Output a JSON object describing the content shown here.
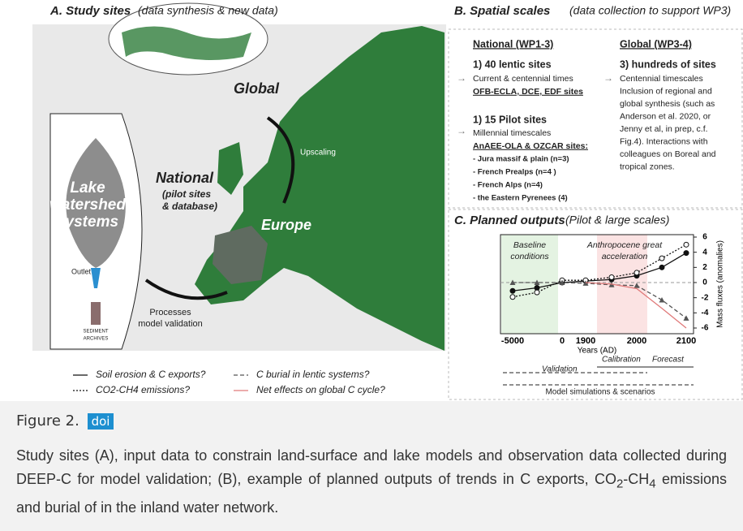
{
  "panel_a": {
    "heading": "A. Study sites",
    "subheading": "(data synthesis & new data)",
    "labels": {
      "global": "Global",
      "national": "National",
      "national_note": [
        "(pilot sites",
        "& database)"
      ],
      "europe": "Europe",
      "upscaling": "Upscaling",
      "lake": [
        "Lake",
        "watershed",
        "systems"
      ],
      "outlet": "Outlet",
      "archives": [
        "SEDIMENT",
        "ARCHIVES"
      ],
      "processes": [
        "Processes",
        "model validation"
      ]
    }
  },
  "panel_b": {
    "heading": "B. Spatial scales",
    "subheading": "(data collection to support WP3)",
    "national": {
      "title": "National (WP1-3)",
      "group_1_title": "1) 40 lentic sites",
      "group_1_lines": [
        "Current & centennial times",
        "OFB-ECLA, DCE, EDF sites"
      ],
      "group_2_title": "1) 15 Pilot sites",
      "group_2_lines": [
        "Millennial timescales",
        "AnAEE-OLA & OZCAR sites:"
      ],
      "bullets": [
        "- Jura massif & plain (n=3)",
        "- French Prealps (n=4 )",
        "- French Alps (n=4)",
        "- the Eastern Pyrenees (4)"
      ]
    },
    "global": {
      "title": "Global (WP3-4)",
      "group_title": "3) hundreds of sites",
      "lines": [
        "Centennial timescales",
        "Inclusion of regional and",
        "global synthesis (such as",
        "Anderson et al. 2020, or",
        "Jenny et al, in prep, c.f.",
        "Fig.4). Interactions with",
        "colleagues on Boreal and",
        "tropical zones."
      ]
    }
  },
  "panel_c": {
    "heading": "C. Planned outputs",
    "subheading": "(Pilot & large scales)",
    "annotations": {
      "baseline": [
        "Baseline",
        "conditions"
      ],
      "anthropocene": [
        "Anthropocene great",
        "acceleration"
      ]
    },
    "timeline": {
      "validation": "Validation",
      "calibration": "Calibration",
      "forecast": "Forecast",
      "simulations": "Model simulations & scenarios"
    }
  },
  "chart_data": {
    "type": "line",
    "x_label": "Years (AD)",
    "y_label": "Mass fluxes (anomalies)",
    "categories": [
      "-5000",
      null,
      "0",
      "1900",
      null,
      "2000",
      null,
      "2100"
    ],
    "ylim": [
      -6,
      6
    ],
    "yticks": [
      -6,
      -4,
      -2,
      0,
      2,
      4,
      6
    ],
    "series": [
      {
        "name": "Soil erosion & C exports?",
        "color": "#111111",
        "style": "solid",
        "marker": "filled-circle",
        "values": [
          -1.1,
          -0.7,
          0,
          0.2,
          0.4,
          0.9,
          2,
          3.9
        ]
      },
      {
        "name": "CO2-CH4 emissions?",
        "color": "#111111",
        "style": "dotted",
        "marker": "open-circle",
        "values": [
          -1.9,
          -1.3,
          0.3,
          0.3,
          0.7,
          1.3,
          3.2,
          5
        ]
      },
      {
        "name": "C burial in lentic systems?",
        "color": "#555555",
        "style": "dashed",
        "marker": "triangle",
        "values": [
          0,
          0,
          0,
          -0.1,
          -0.3,
          -0.4,
          -2.3,
          -4.7
        ]
      },
      {
        "name": "Net effects on global C cycle?",
        "color": "#e07a7a",
        "style": "solid",
        "marker": "none",
        "values": [
          null,
          null,
          null,
          0,
          -0.2,
          -0.8,
          -3.4,
          -6
        ]
      }
    ]
  },
  "caption": {
    "label": "Figure 2.",
    "doi": "doi",
    "segments": [
      "Study sites (A), input data to constrain land-surface and lake models and observation data collected during DEEP-C for model validation; (B), example of planned outputs of trends in C exports, CO",
      "2",
      "-CH",
      "4",
      " emissions and burial of in the inland water network."
    ]
  }
}
